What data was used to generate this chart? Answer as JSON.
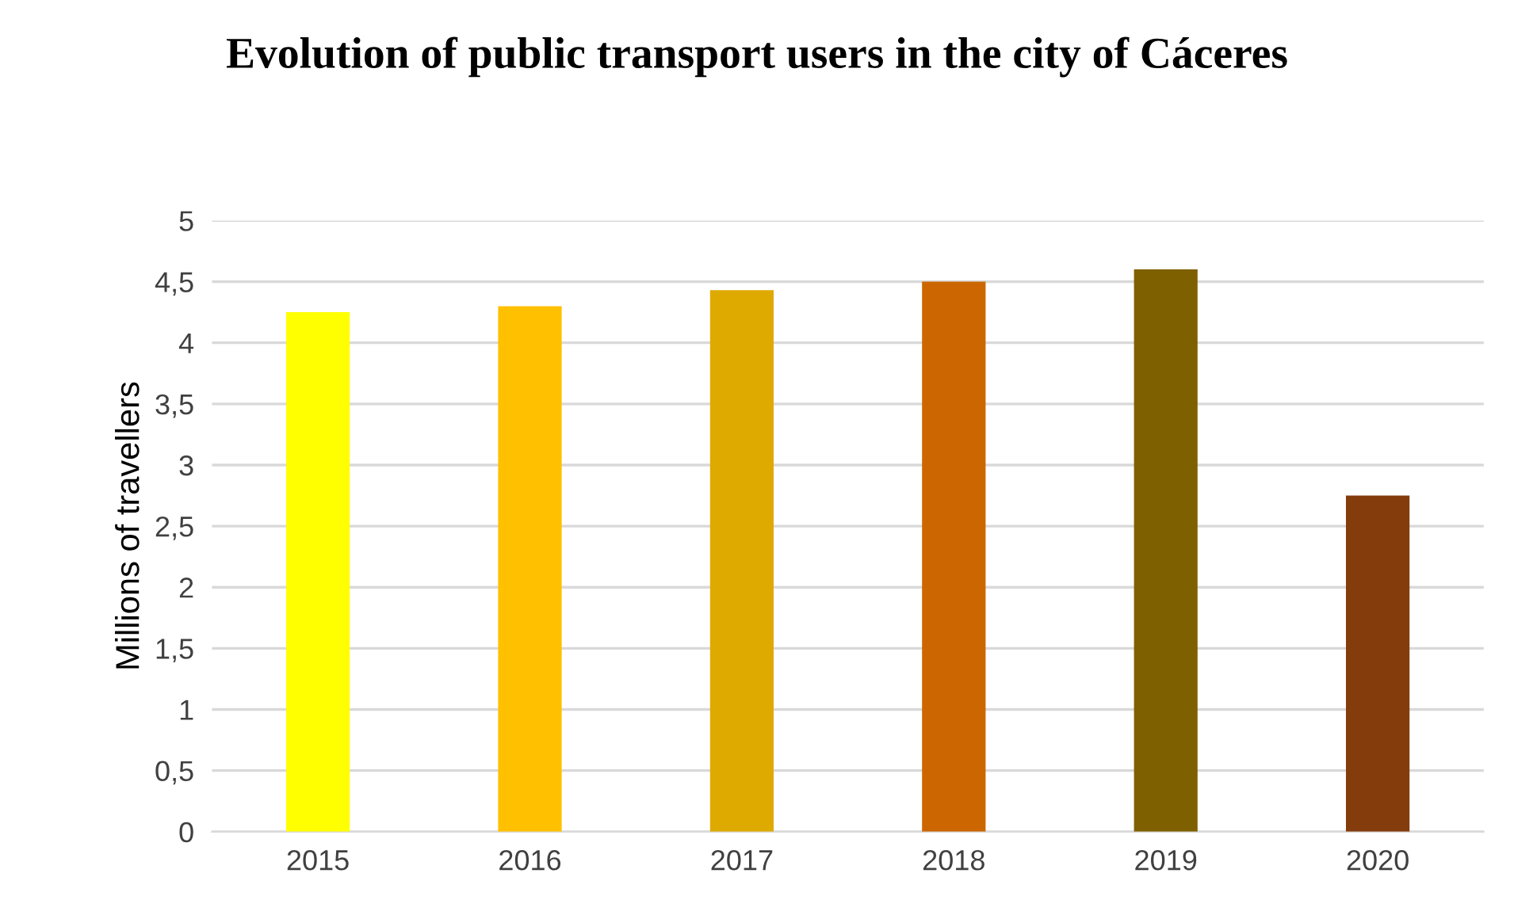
{
  "chart_data": {
    "type": "bar",
    "title": "Evolution of public transport users in the city of Cáceres",
    "ylabel": "Millions of travellers",
    "categories": [
      "2015",
      "2016",
      "2017",
      "2018",
      "2019",
      "2020"
    ],
    "values": [
      4.25,
      4.3,
      4.43,
      4.5,
      4.6,
      2.75
    ],
    "colors": [
      "#ffff00",
      "#ffc000",
      "#dfaa00",
      "#cc6600",
      "#7f6000",
      "#843c0c"
    ],
    "ylim": [
      0,
      5
    ],
    "yticks": [
      0,
      {
        "value": 0.5,
        "label": "0,5"
      },
      1,
      {
        "value": 1.5,
        "label": "1,5"
      },
      2,
      {
        "value": 2.5,
        "label": "2,5"
      },
      3,
      {
        "value": 3.5,
        "label": "3,5"
      },
      4,
      {
        "value": 4.5,
        "label": "4,5"
      },
      5
    ],
    "grid": "y",
    "legend": false
  }
}
